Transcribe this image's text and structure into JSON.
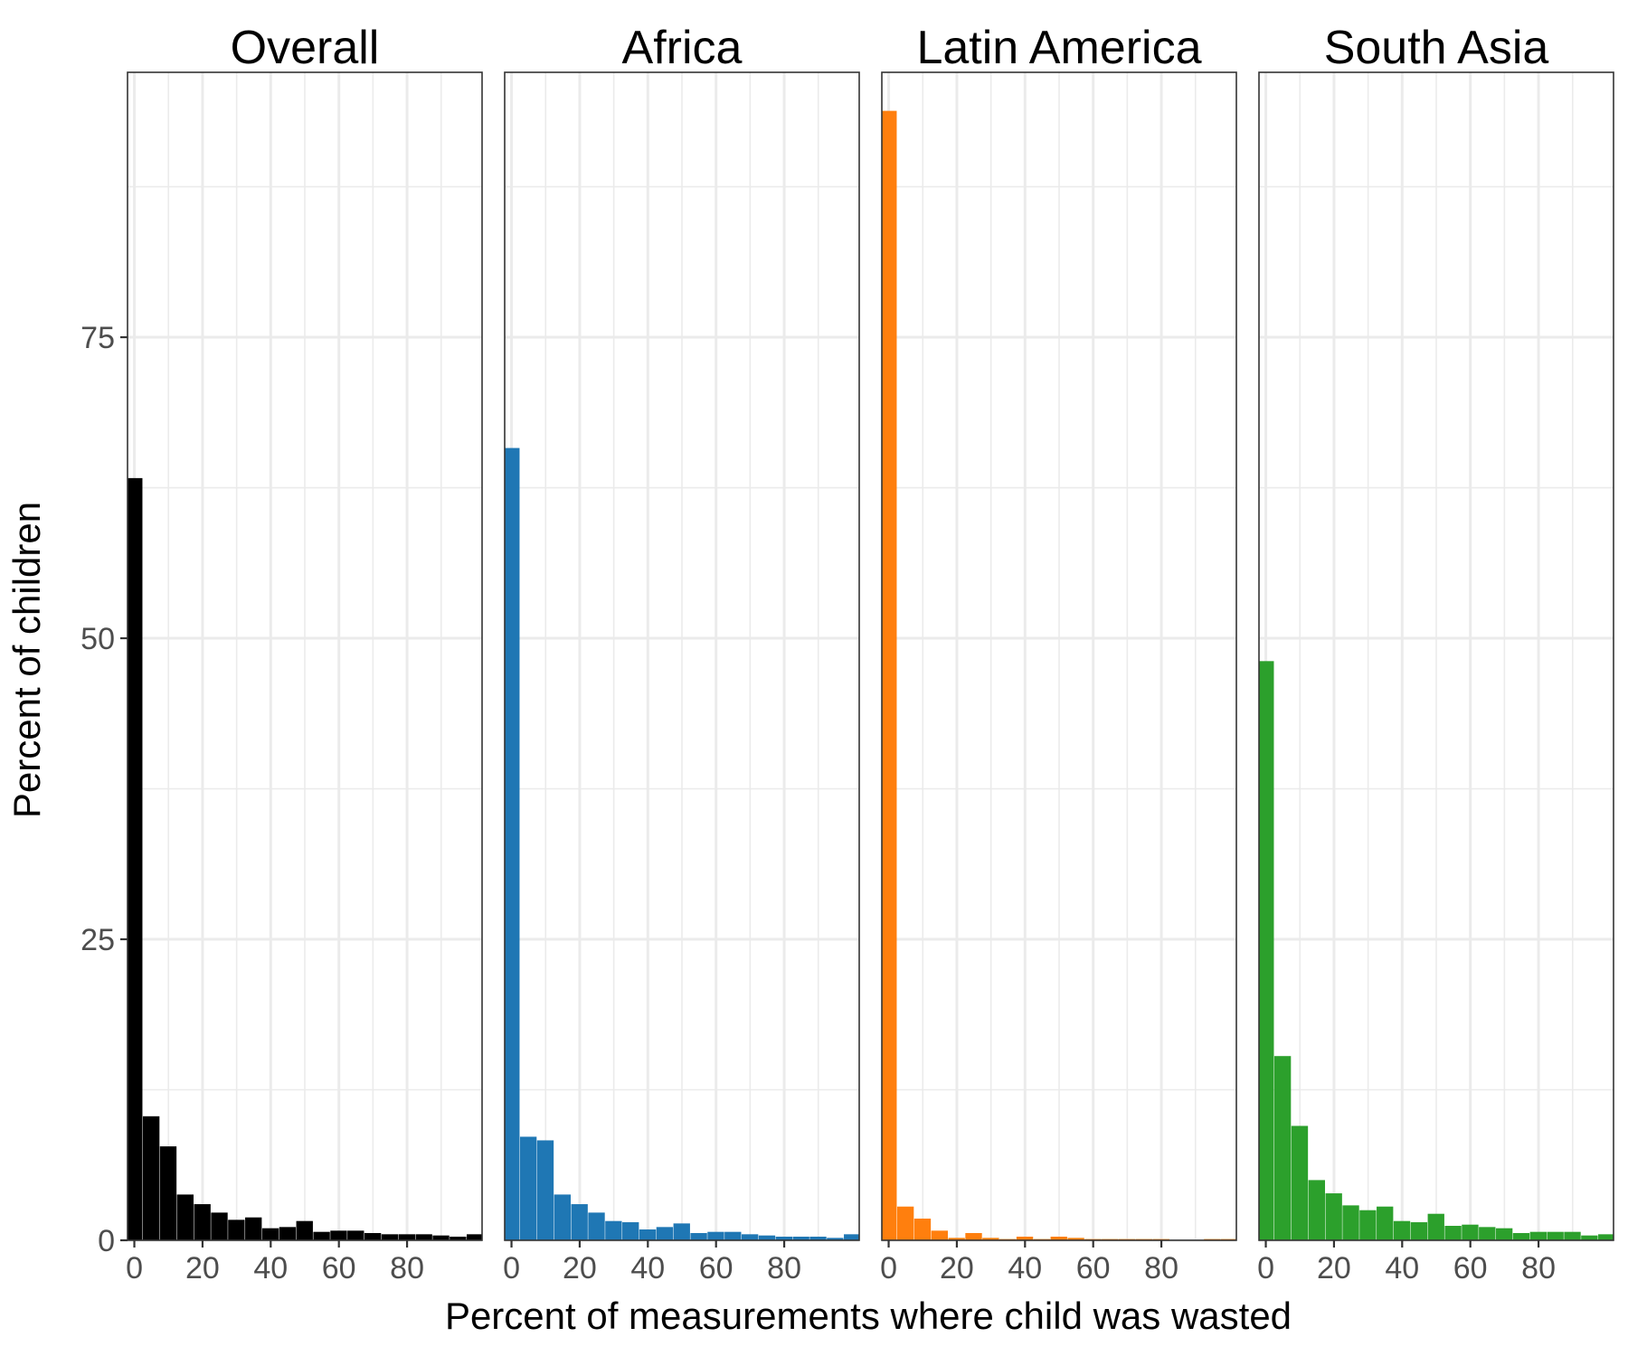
{
  "chart_data": {
    "type": "bar",
    "subtype": "histogram-facets",
    "xlabel": "Percent of measurements where child was wasted",
    "ylabel": "Percent of children",
    "xlim": [
      -2,
      102
    ],
    "ylim": [
      0,
      97
    ],
    "bin_width": 5,
    "x_ticks": [
      0,
      20,
      40,
      60,
      80
    ],
    "y_ticks": [
      0,
      25,
      50,
      75
    ],
    "y_minor": [
      12.5,
      37.5,
      62.5,
      87.5
    ],
    "grid": true,
    "bin_starts": [
      -2.5,
      2.5,
      7.5,
      12.5,
      17.5,
      22.5,
      27.5,
      32.5,
      37.5,
      42.5,
      47.5,
      52.5,
      57.5,
      62.5,
      67.5,
      72.5,
      77.5,
      82.5,
      87.5,
      92.5,
      97.5
    ],
    "series": [
      {
        "name": "Overall",
        "color": "#000000",
        "values": [
          63.3,
          10.3,
          7.8,
          3.8,
          3.0,
          2.3,
          1.7,
          1.9,
          1.0,
          1.1,
          1.6,
          0.7,
          0.8,
          0.8,
          0.6,
          0.5,
          0.5,
          0.5,
          0.4,
          0.3,
          0.5
        ]
      },
      {
        "name": "Africa",
        "color": "#1f77b4",
        "values": [
          65.8,
          8.6,
          8.3,
          3.8,
          3.0,
          2.3,
          1.6,
          1.5,
          0.9,
          1.1,
          1.4,
          0.6,
          0.7,
          0.7,
          0.5,
          0.4,
          0.3,
          0.3,
          0.3,
          0.2,
          0.5
        ]
      },
      {
        "name": "Latin America",
        "color": "#ff7f0e",
        "values": [
          93.8,
          2.8,
          1.8,
          0.8,
          0.2,
          0.6,
          0.2,
          0.1,
          0.3,
          0.1,
          0.3,
          0.2,
          0.1,
          0.1,
          0.1,
          0.1,
          0.1,
          0.0,
          0.0,
          0.1,
          0.1
        ]
      },
      {
        "name": "South Asia",
        "color": "#2ca02c",
        "values": [
          48.1,
          15.3,
          9.5,
          5.0,
          3.9,
          2.9,
          2.5,
          2.8,
          1.6,
          1.5,
          2.2,
          1.2,
          1.3,
          1.1,
          1.0,
          0.6,
          0.7,
          0.7,
          0.7,
          0.4,
          0.5
        ]
      }
    ]
  }
}
